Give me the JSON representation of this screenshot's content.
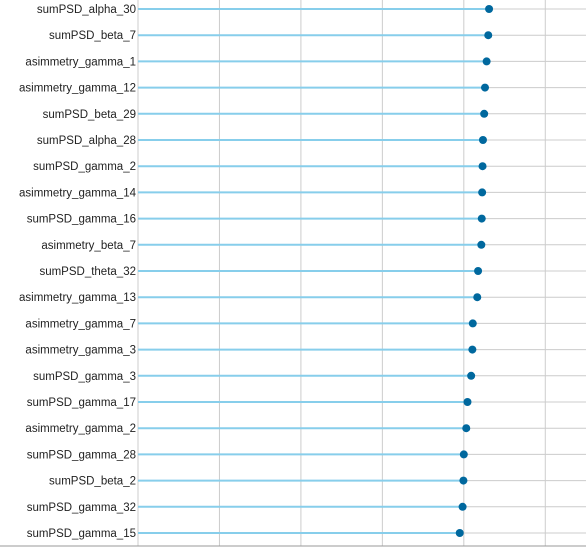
{
  "chart_data": {
    "type": "lollipop",
    "orientation": "horizontal",
    "categories": [
      "sumPSD_alpha_30",
      "sumPSD_beta_7",
      "asimmetry_gamma_1",
      "asimmetry_gamma_12",
      "sumPSD_beta_29",
      "sumPSD_alpha_28",
      "sumPSD_gamma_2",
      "asimmetry_gamma_14",
      "sumPSD_gamma_16",
      "asimmetry_beta_7",
      "sumPSD_theta_32",
      "asimmetry_gamma_13",
      "asimmetry_gamma_7",
      "asimmetry_gamma_3",
      "sumPSD_gamma_3",
      "sumPSD_gamma_17",
      "asimmetry_gamma_2",
      "sumPSD_gamma_28",
      "sumPSD_beta_2",
      "sumPSD_gamma_32",
      "sumPSD_gamma_15"
    ],
    "values": [
      0.862,
      0.86,
      0.856,
      0.852,
      0.85,
      0.847,
      0.846,
      0.845,
      0.844,
      0.843,
      0.835,
      0.833,
      0.822,
      0.821,
      0.818,
      0.809,
      0.806,
      0.8,
      0.799,
      0.797,
      0.79
    ],
    "xlim": [
      0,
      1.1
    ],
    "x_gridlines": [
      0.2,
      0.4,
      0.6,
      0.8,
      1.0
    ],
    "grid": true,
    "colors": {
      "stem": "#87ceeb",
      "marker": "#00689e",
      "grid": "#cccccc",
      "label": "#222222"
    }
  }
}
